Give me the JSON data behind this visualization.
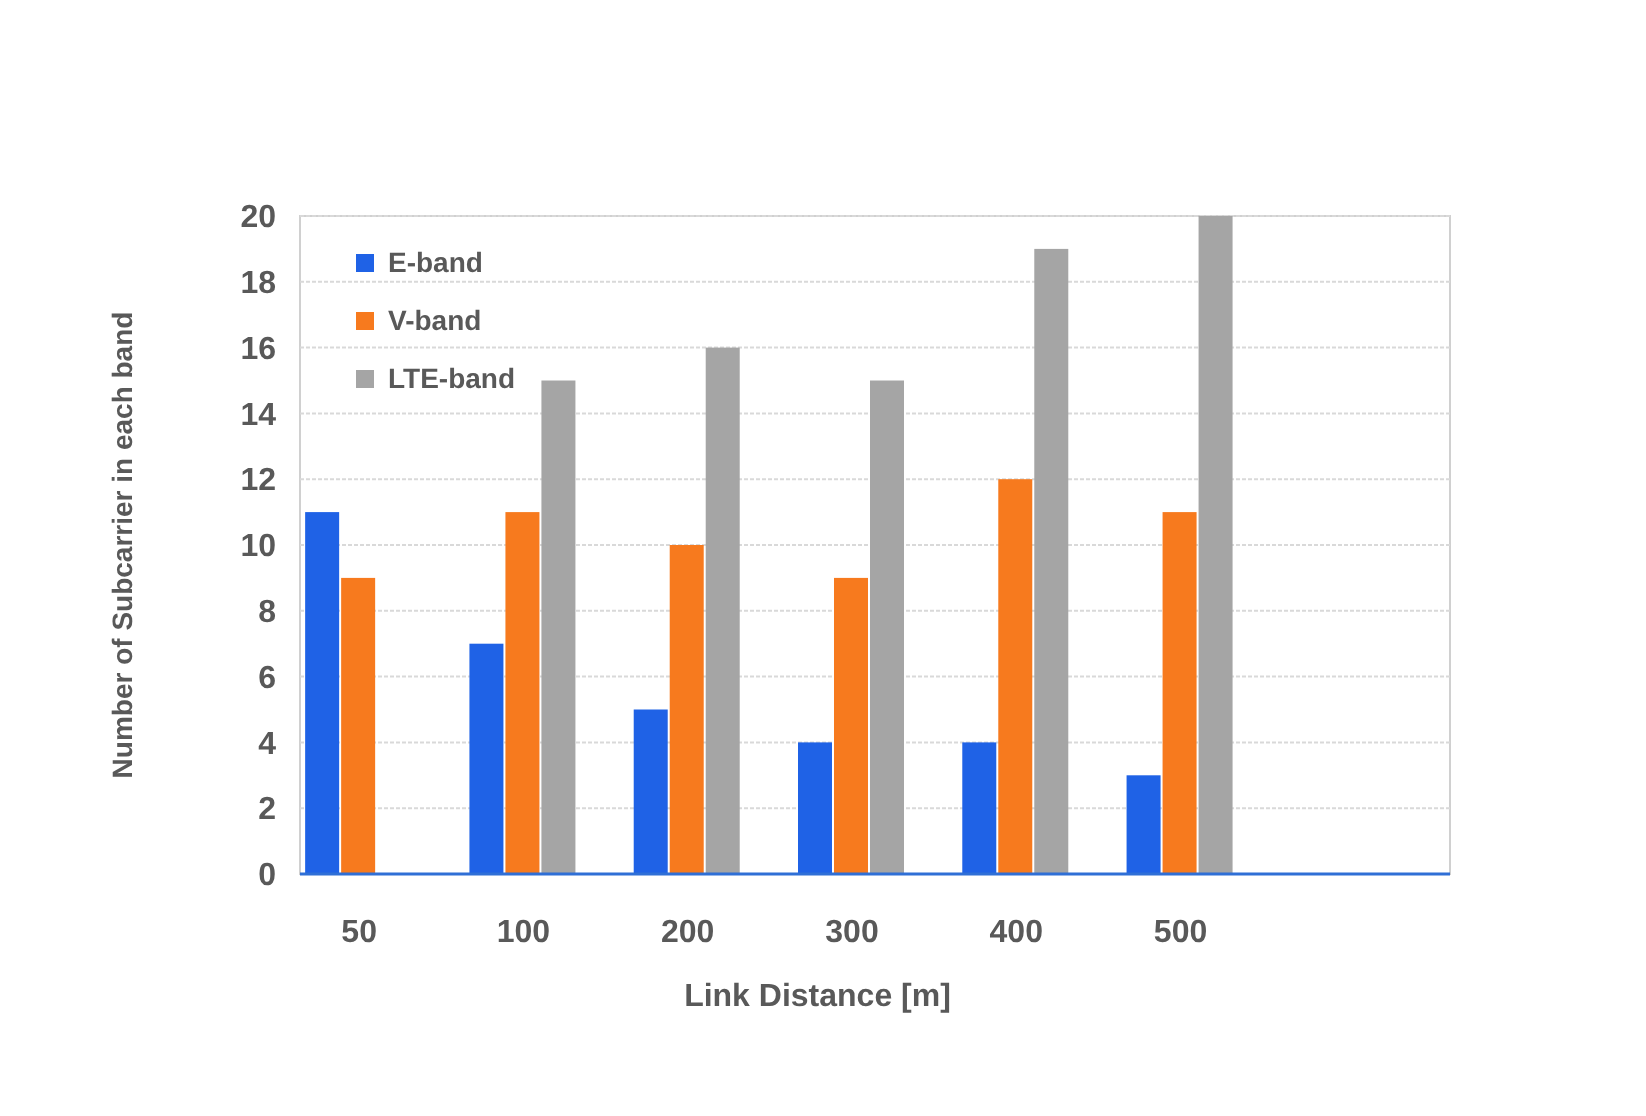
{
  "chart_data": {
    "type": "bar",
    "xlabel": "Link Distance [m]",
    "ylabel": "Number of Subcarrier in each band",
    "categories": [
      "50",
      "100",
      "200",
      "300",
      "400",
      "500",
      null
    ],
    "series": [
      {
        "name": "E-band",
        "color": "#1f62e6",
        "values": [
          11,
          7,
          5,
          4,
          4,
          3,
          null
        ]
      },
      {
        "name": "V-band",
        "color": "#f77a1e",
        "values": [
          9,
          11,
          10,
          9,
          12,
          11,
          null
        ]
      },
      {
        "name": "LTE-band",
        "color": "#a5a5a5",
        "values": [
          null,
          15,
          16,
          15,
          19,
          20,
          null
        ]
      }
    ],
    "ylim": [
      0,
      20
    ],
    "yticks": [
      0,
      2,
      4,
      6,
      8,
      10,
      12,
      14,
      16,
      18,
      20
    ],
    "grid": "y",
    "legend": "top left"
  }
}
